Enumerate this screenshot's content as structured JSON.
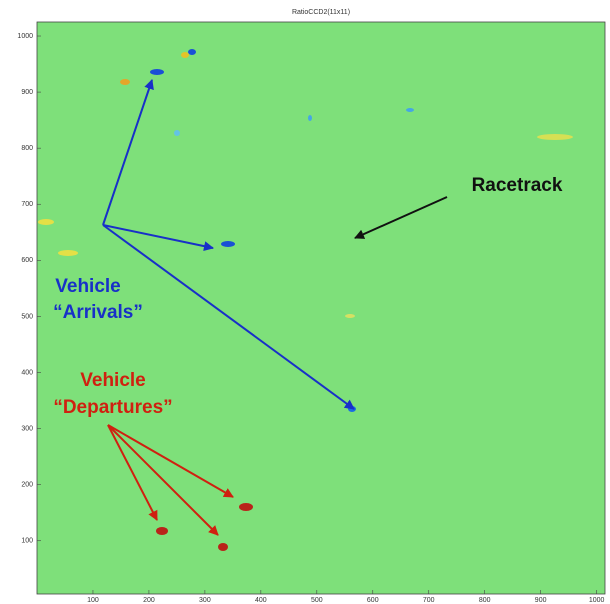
{
  "chart_data": {
    "type": "heatmap",
    "title": "RatioCCD2(11x11)",
    "xlim": [
      0,
      1015
    ],
    "ylim": [
      5,
      1025
    ],
    "xticks": [
      100,
      200,
      300,
      400,
      500,
      600,
      700,
      800,
      900,
      1000
    ],
    "yticks": [
      100,
      200,
      300,
      400,
      500,
      600,
      700,
      800,
      900,
      1000
    ],
    "background_color": "#7ee07a",
    "annotations": [
      "Racetrack",
      "Vehicle",
      "“Arrivals”",
      "Vehicle",
      "“Departures”"
    ]
  }
}
